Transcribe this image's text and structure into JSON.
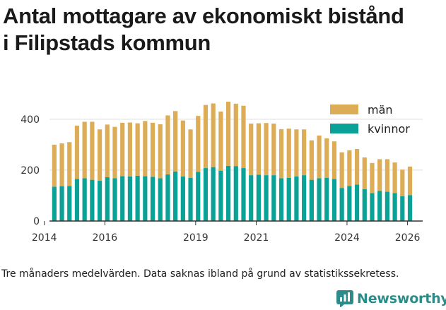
{
  "title_lines": [
    "Antal mottagare av ekonomiskt bistånd",
    "i Filipstads kommun"
  ],
  "footnote": "Tre månaders medelvärden. Data saknas ibland på grund av statistikssekretess.",
  "brand": {
    "name": "Newsworthy",
    "color": "#2b8c89"
  },
  "colors": {
    "men": "#dcac56",
    "women": "#0aa196",
    "grid": "#dddddd"
  },
  "chart_data": {
    "type": "bar",
    "stacked": true,
    "title": "Antal mottagare av ekonomiskt bistånd i Filipstads kommun",
    "ylim": [
      0,
      480
    ],
    "yticks": [
      0,
      200,
      400
    ],
    "xticks": [
      "2014",
      "2016",
      "2019",
      "2021",
      "2024",
      "2026"
    ],
    "xlim": [
      2014.17,
      2026.5
    ],
    "legend_position": "top-right",
    "x": [
      2014.33,
      2014.58,
      2014.83,
      2015.08,
      2015.33,
      2015.58,
      2015.83,
      2016.08,
      2016.33,
      2016.58,
      2016.83,
      2017.08,
      2017.33,
      2017.58,
      2017.83,
      2018.08,
      2018.33,
      2018.58,
      2018.83,
      2019.08,
      2019.33,
      2019.58,
      2019.83,
      2020.08,
      2020.33,
      2020.58,
      2020.83,
      2021.08,
      2021.33,
      2021.58,
      2021.83,
      2022.08,
      2022.33,
      2022.58,
      2022.83,
      2023.08,
      2023.33,
      2023.58,
      2023.83,
      2024.08,
      2024.33,
      2024.58,
      2024.83,
      2025.08,
      2025.33,
      2025.58,
      2025.83,
      2026.08
    ],
    "series": [
      {
        "name": "kvinnor",
        "values": [
          135,
          137,
          138,
          165,
          168,
          162,
          158,
          172,
          168,
          176,
          175,
          178,
          176,
          174,
          168,
          183,
          195,
          175,
          170,
          193,
          208,
          212,
          198,
          217,
          216,
          208,
          180,
          182,
          180,
          180,
          168,
          170,
          175,
          180,
          162,
          168,
          170,
          165,
          130,
          138,
          143,
          125,
          110,
          118,
          115,
          110,
          98,
          102
        ]
      },
      {
        "name": "män",
        "values": [
          165,
          168,
          172,
          210,
          222,
          228,
          202,
          207,
          202,
          210,
          212,
          206,
          217,
          212,
          212,
          232,
          237,
          220,
          190,
          220,
          248,
          250,
          232,
          252,
          245,
          245,
          203,
          202,
          205,
          203,
          193,
          193,
          185,
          180,
          155,
          168,
          155,
          148,
          140,
          140,
          140,
          125,
          118,
          125,
          128,
          120,
          104,
          112
        ]
      }
    ]
  }
}
